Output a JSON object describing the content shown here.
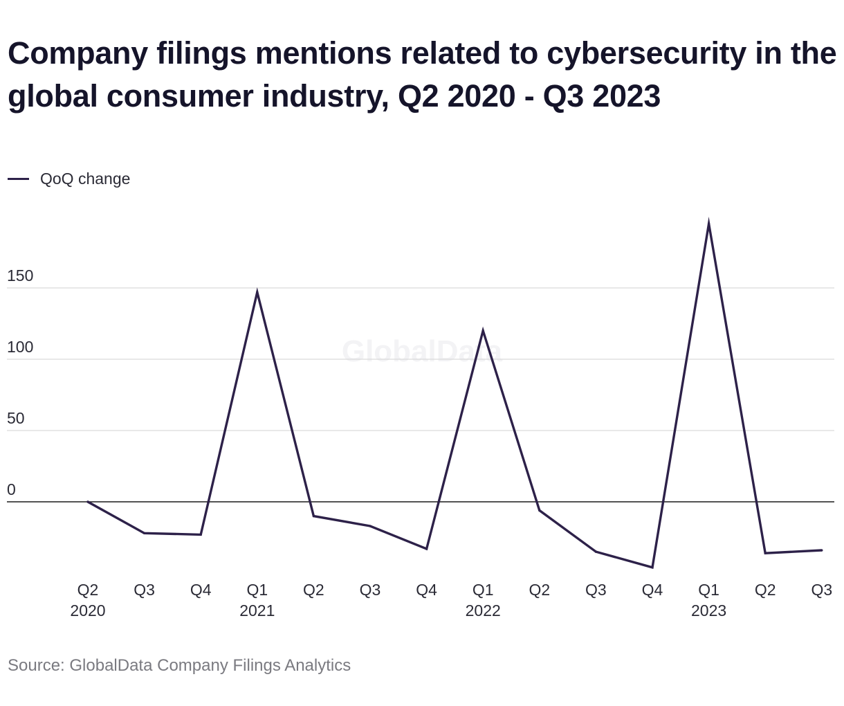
{
  "title": "Company filings mentions related to cybersecurity in the global consumer industry, Q2 2020 - Q3 2023",
  "legend": {
    "label": "QoQ change",
    "color": "#2d2149"
  },
  "watermark": "GlobalData",
  "source": "Source: GlobalData Company Filings Analytics",
  "chart_data": {
    "type": "line",
    "categories": [
      "Q2 2020",
      "Q3 2020",
      "Q4 2020",
      "Q1 2021",
      "Q2 2021",
      "Q3 2021",
      "Q4 2021",
      "Q1 2022",
      "Q2 2022",
      "Q3 2022",
      "Q4 2022",
      "Q1 2023",
      "Q2 2023",
      "Q3 2023"
    ],
    "tick_labels": [
      [
        "Q2",
        "2020"
      ],
      [
        "Q3",
        ""
      ],
      [
        "Q4",
        ""
      ],
      [
        "Q1",
        "2021"
      ],
      [
        "Q2",
        ""
      ],
      [
        "Q3",
        ""
      ],
      [
        "Q4",
        ""
      ],
      [
        "Q1",
        "2022"
      ],
      [
        "Q2",
        ""
      ],
      [
        "Q3",
        ""
      ],
      [
        "Q4",
        ""
      ],
      [
        "Q1",
        "2023"
      ],
      [
        "Q2",
        ""
      ],
      [
        "Q3",
        ""
      ]
    ],
    "series": [
      {
        "name": "QoQ change",
        "values": [
          0,
          -22,
          -23,
          147,
          -10,
          -17,
          -33,
          120,
          -6,
          -35,
          -46,
          195,
          -36,
          -34
        ]
      }
    ],
    "yticks": [
      0,
      50,
      100,
      150
    ],
    "ylim": [
      -55,
      215
    ],
    "grid": true,
    "legend_position": "top-left",
    "colors": {
      "line": "#2d2149",
      "grid": "#d9d9d9",
      "zero": "#1a1a1a",
      "tick_text": "#2a2a35"
    }
  }
}
